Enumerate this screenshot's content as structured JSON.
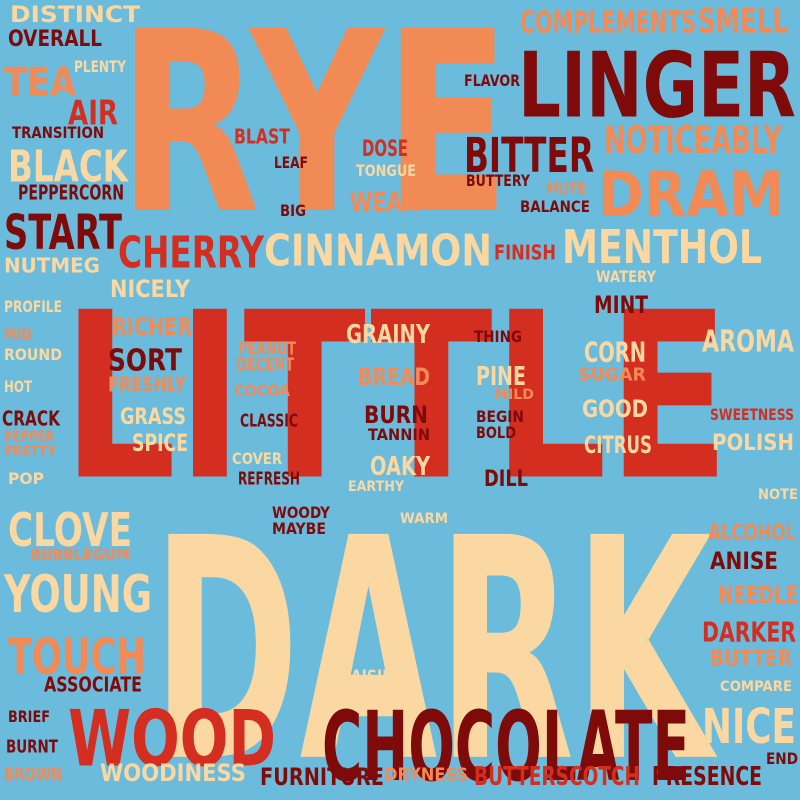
{
  "palette": {
    "background": "#6BBCDC",
    "dark_red": "#7E0A0A",
    "red": "#D42E21",
    "orange": "#F28A55",
    "cream": "#FBD8A1"
  },
  "words": [
    {
      "text": "RYE",
      "color": "#F28A55"
    },
    {
      "text": "LITTLE",
      "color": "#D42E21"
    },
    {
      "text": "DARK",
      "color": "#FBD8A1"
    },
    {
      "text": "LINGER",
      "color": "#7E0A0A"
    },
    {
      "text": "CHOCOLATE",
      "color": "#7E0A0A"
    },
    {
      "text": "WOOD",
      "color": "#D42E21"
    },
    {
      "text": "DRAM",
      "color": "#F28A55"
    },
    {
      "text": "MENTHOL",
      "color": "#FBD8A1"
    },
    {
      "text": "CINNAMON",
      "color": "#FBD8A1"
    },
    {
      "text": "CHERRY",
      "color": "#D42E21"
    },
    {
      "text": "BITTER",
      "color": "#7E0A0A"
    },
    {
      "text": "NOTICEABLY",
      "color": "#F28A55"
    },
    {
      "text": "COMPLEMENTS",
      "color": "#F28A55"
    },
    {
      "text": "SMELL",
      "color": "#F28A55"
    },
    {
      "text": "BLACK",
      "color": "#FBD8A1"
    },
    {
      "text": "START",
      "color": "#7E0A0A"
    },
    {
      "text": "TEA",
      "color": "#F28A55"
    },
    {
      "text": "CLOVE",
      "color": "#FBD8A1"
    },
    {
      "text": "YOUNG",
      "color": "#FBD8A1"
    },
    {
      "text": "TOUCH",
      "color": "#F28A55"
    },
    {
      "text": "NICE",
      "color": "#FBD8A1"
    },
    {
      "text": "AROMA",
      "color": "#FBD8A1"
    },
    {
      "text": "POLISH",
      "color": "#FBD8A1"
    },
    {
      "text": "DISTINCT",
      "color": "#FBD8A1"
    },
    {
      "text": "OVERALL",
      "color": "#7E0A0A"
    },
    {
      "text": "PLENTY",
      "color": "#FBD8A1"
    },
    {
      "text": "AIR",
      "color": "#D42E21"
    },
    {
      "text": "TRANSITION",
      "color": "#7E0A0A"
    },
    {
      "text": "PEPPERCORN",
      "color": "#7E0A0A"
    },
    {
      "text": "NUTMEG",
      "color": "#FBD8A1"
    },
    {
      "text": "FLAVOR",
      "color": "#7E0A0A"
    },
    {
      "text": "BLAST",
      "color": "#D42E21"
    },
    {
      "text": "LEAF",
      "color": "#7E0A0A"
    },
    {
      "text": "DOSE",
      "color": "#D42E21"
    },
    {
      "text": "TONGUE",
      "color": "#FBD8A1"
    },
    {
      "text": "WEAK",
      "color": "#F28A55"
    },
    {
      "text": "BIG",
      "color": "#7E0A0A"
    },
    {
      "text": "BUTTERY",
      "color": "#7E0A0A"
    },
    {
      "text": "MUTE",
      "color": "#F28A55"
    },
    {
      "text": "BALANCE",
      "color": "#7E0A0A"
    },
    {
      "text": "FINISH",
      "color": "#D42E21"
    },
    {
      "text": "WATERY",
      "color": "#FBD8A1"
    },
    {
      "text": "NICELY",
      "color": "#FBD8A1"
    },
    {
      "text": "PROFILE",
      "color": "#FBD8A1"
    },
    {
      "text": "MID",
      "color": "#F28A55"
    },
    {
      "text": "ROUND",
      "color": "#FBD8A1"
    },
    {
      "text": "HOT",
      "color": "#FBD8A1"
    },
    {
      "text": "CRACK",
      "color": "#7E0A0A"
    },
    {
      "text": "PEPPER",
      "color": "#F28A55"
    },
    {
      "text": "PRETTY",
      "color": "#F28A55"
    },
    {
      "text": "POP",
      "color": "#FBD8A1"
    },
    {
      "text": "RICHER",
      "color": "#F28A55"
    },
    {
      "text": "SORT",
      "color": "#7E0A0A"
    },
    {
      "text": "FRESHLY",
      "color": "#F28A55"
    },
    {
      "text": "GRASS",
      "color": "#FBD8A1"
    },
    {
      "text": "SPICE",
      "color": "#FBD8A1"
    },
    {
      "text": "PEANUT",
      "color": "#F28A55"
    },
    {
      "text": "DECENT",
      "color": "#F28A55"
    },
    {
      "text": "COCOA",
      "color": "#F28A55"
    },
    {
      "text": "CLASSIC",
      "color": "#7E0A0A"
    },
    {
      "text": "COVER",
      "color": "#FBD8A1"
    },
    {
      "text": "REFRESH",
      "color": "#7E0A0A"
    },
    {
      "text": "GRAINY",
      "color": "#FBD8A1"
    },
    {
      "text": "BREAD",
      "color": "#F28A55"
    },
    {
      "text": "THING",
      "color": "#7E0A0A"
    },
    {
      "text": "PINE",
      "color": "#FBD8A1"
    },
    {
      "text": "MILD",
      "color": "#F28A55"
    },
    {
      "text": "BURN",
      "color": "#7E0A0A"
    },
    {
      "text": "TANNIN",
      "color": "#7E0A0A"
    },
    {
      "text": "BEGIN",
      "color": "#7E0A0A"
    },
    {
      "text": "BOLD",
      "color": "#7E0A0A"
    },
    {
      "text": "OAKY",
      "color": "#FBD8A1"
    },
    {
      "text": "EARTHY",
      "color": "#FBD8A1"
    },
    {
      "text": "DILL",
      "color": "#7E0A0A"
    },
    {
      "text": "MINT",
      "color": "#7E0A0A"
    },
    {
      "text": "CORN",
      "color": "#FBD8A1"
    },
    {
      "text": "SUGAR",
      "color": "#F28A55"
    },
    {
      "text": "GOOD",
      "color": "#FBD8A1"
    },
    {
      "text": "CITRUS",
      "color": "#FBD8A1"
    },
    {
      "text": "SWEETNESS",
      "color": "#D42E21"
    },
    {
      "text": "NOTE",
      "color": "#FBD8A1"
    },
    {
      "text": "WOODY",
      "color": "#7E0A0A"
    },
    {
      "text": "MAYBE",
      "color": "#7E0A0A"
    },
    {
      "text": "WARM",
      "color": "#FBD8A1"
    },
    {
      "text": "ALCOHOL",
      "color": "#F28A55"
    },
    {
      "text": "ANISE",
      "color": "#7E0A0A"
    },
    {
      "text": "NEEDLE",
      "color": "#F28A55"
    },
    {
      "text": "DARKER",
      "color": "#D42E21"
    },
    {
      "text": "BUTTER",
      "color": "#F28A55"
    },
    {
      "text": "COMPARE",
      "color": "#FBD8A1"
    },
    {
      "text": "BUBBLEGUM",
      "color": "#F28A55"
    },
    {
      "text": "ASSOCIATE",
      "color": "#7E0A0A"
    },
    {
      "text": "RAISIN",
      "color": "#FBD8A1"
    },
    {
      "text": "BRIEF",
      "color": "#7E0A0A"
    },
    {
      "text": "BURNT",
      "color": "#7E0A0A"
    },
    {
      "text": "BROWN",
      "color": "#F28A55"
    },
    {
      "text": "WOODINESS",
      "color": "#FBD8A1"
    },
    {
      "text": "FURNITURE",
      "color": "#7E0A0A"
    },
    {
      "text": "DRYNESS",
      "color": "#F28A55"
    },
    {
      "text": "BUTTERSCOTCH",
      "color": "#D42E21"
    },
    {
      "text": "PRESENCE",
      "color": "#7E0A0A"
    },
    {
      "text": "END",
      "color": "#7E0A0A"
    }
  ]
}
